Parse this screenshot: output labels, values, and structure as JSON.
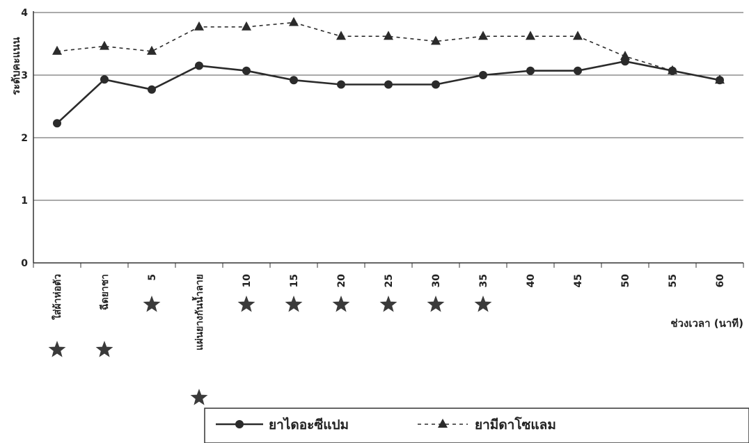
{
  "chart_data": {
    "type": "line",
    "ylabel": "ระดับคะแนน",
    "xlabel": "ช่วงเวลา (นาที)",
    "ylim": [
      0,
      4
    ],
    "y_ticks": [
      "0",
      "1",
      "2",
      "3",
      "4"
    ],
    "y_tick_values": [
      0,
      1,
      2,
      3,
      4
    ],
    "grid": true,
    "legend_position": "bottom-right",
    "categories": [
      "ใส่ผ้าห่อตัว",
      "ฉีดยาชา",
      "5",
      "แผ่นยางกันน้ำลาย",
      "10",
      "15",
      "20",
      "25",
      "30",
      "35",
      "40",
      "45",
      "50",
      "55",
      "60"
    ],
    "series": [
      {
        "name": "ยาไดอะซีแปม",
        "style": "solid",
        "marker": "circle",
        "values": [
          2.23,
          2.93,
          2.77,
          3.15,
          3.07,
          2.92,
          2.85,
          2.85,
          2.85,
          3.0,
          3.07,
          3.07,
          3.22,
          3.07,
          2.92
        ]
      },
      {
        "name": "ยามีดาโซแลม",
        "style": "dashed",
        "marker": "triangle",
        "values": [
          3.38,
          3.46,
          3.38,
          3.77,
          3.77,
          3.84,
          3.62,
          3.62,
          3.54,
          3.62,
          3.62,
          3.62,
          3.3,
          3.07,
          2.92
        ]
      }
    ],
    "star_markers": [
      "ใส่ผ้าห่อตัว",
      "ฉีดยาชา",
      "5",
      "แผ่นยางกันน้ำลาย",
      "10",
      "15",
      "20",
      "25",
      "30",
      "35"
    ],
    "colors": {
      "line": "#2b2b2b",
      "grid": "#555555",
      "axis": "#333333",
      "star": "#3a3a3a"
    }
  }
}
